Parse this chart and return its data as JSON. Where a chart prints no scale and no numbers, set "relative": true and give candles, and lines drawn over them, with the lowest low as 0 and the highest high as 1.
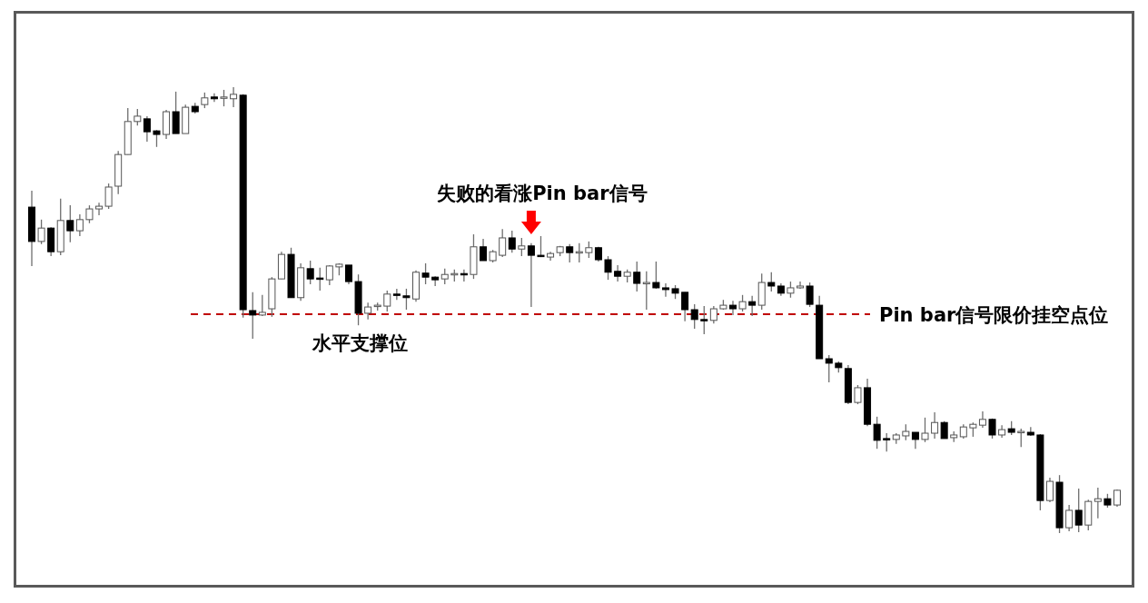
{
  "chart_data": {
    "type": "candlestick",
    "relative": true,
    "categories": [
      null,
      null,
      null,
      null,
      null,
      null,
      null,
      null,
      null,
      null,
      null,
      null,
      null,
      null,
      null,
      null,
      null,
      null,
      null,
      null,
      null,
      null,
      null,
      null,
      null,
      null,
      null,
      null,
      null,
      null,
      null,
      null,
      null,
      null,
      null,
      null,
      null,
      null,
      null,
      null,
      null,
      null,
      null,
      null,
      null,
      null,
      null,
      null,
      null,
      null,
      null,
      null,
      null,
      null,
      null,
      null,
      null,
      null,
      null,
      null,
      null,
      null,
      null,
      null,
      null,
      null,
      null,
      null,
      null,
      null,
      null,
      null,
      null,
      null,
      null,
      null,
      null,
      null,
      null,
      null,
      null,
      null,
      null,
      null,
      null,
      null,
      null,
      null,
      null,
      null,
      null,
      null,
      null,
      null,
      null,
      null,
      null,
      null,
      null,
      null,
      null,
      null,
      null,
      null,
      null,
      null,
      null,
      null,
      null,
      null,
      null,
      null,
      null,
      null
    ],
    "ohlc": [
      [
        0.731,
        0.768,
        0.599,
        0.654
      ],
      [
        0.654,
        0.703,
        0.648,
        0.684
      ],
      [
        0.684,
        0.686,
        0.621,
        0.631
      ],
      [
        0.631,
        0.75,
        0.623,
        0.701
      ],
      [
        0.701,
        0.735,
        0.652,
        0.678
      ],
      [
        0.678,
        0.715,
        0.666,
        0.703
      ],
      [
        0.703,
        0.735,
        0.695,
        0.727
      ],
      [
        0.727,
        0.741,
        0.713,
        0.733
      ],
      [
        0.733,
        0.784,
        0.727,
        0.776
      ],
      [
        0.778,
        0.857,
        0.76,
        0.849
      ],
      [
        0.849,
        0.953,
        0.849,
        0.923
      ],
      [
        0.923,
        0.951,
        0.914,
        0.935
      ],
      [
        0.929,
        0.935,
        0.878,
        0.9
      ],
      [
        0.902,
        0.904,
        0.866,
        0.894
      ],
      [
        0.894,
        0.949,
        0.884,
        0.945
      ],
      [
        0.945,
        0.99,
        0.896,
        0.896
      ],
      [
        0.896,
        0.961,
        0.896,
        0.955
      ],
      [
        0.957,
        0.965,
        0.941,
        0.945
      ],
      [
        0.961,
        0.988,
        0.953,
        0.976
      ],
      [
        0.978,
        0.986,
        0.967,
        0.974
      ],
      [
        0.976,
        0.994,
        0.957,
        0.978
      ],
      [
        0.974,
        1,
        0.955,
        0.984
      ],
      [
        0.982,
        0.984,
        0.483,
        0.501
      ],
      [
        0.499,
        0.54,
        0.436,
        0.489
      ],
      [
        0.489,
        0.534,
        0.487,
        0.495
      ],
      [
        0.503,
        0.574,
        0.485,
        0.57
      ],
      [
        0.57,
        0.631,
        0.57,
        0.625
      ],
      [
        0.625,
        0.64,
        0.528,
        0.528
      ],
      [
        0.528,
        0.605,
        0.521,
        0.595
      ],
      [
        0.593,
        0.611,
        0.558,
        0.57
      ],
      [
        0.572,
        0.595,
        0.544,
        0.57
      ],
      [
        0.568,
        0.601,
        0.556,
        0.599
      ],
      [
        0.597,
        0.605,
        0.578,
        0.603
      ],
      [
        0.601,
        0.601,
        0.558,
        0.564
      ],
      [
        0.564,
        0.58,
        0.466,
        0.493
      ],
      [
        0.493,
        0.517,
        0.479,
        0.507
      ],
      [
        0.509,
        0.517,
        0.499,
        0.511
      ],
      [
        0.509,
        0.544,
        0.497,
        0.536
      ],
      [
        0.536,
        0.548,
        0.523,
        0.534
      ],
      [
        0.532,
        0.548,
        0.501,
        0.528
      ],
      [
        0.525,
        0.589,
        0.519,
        0.585
      ],
      [
        0.583,
        0.605,
        0.558,
        0.574
      ],
      [
        0.574,
        0.576,
        0.554,
        0.568
      ],
      [
        0.57,
        0.593,
        0.558,
        0.58
      ],
      [
        0.58,
        0.591,
        0.564,
        0.582
      ],
      [
        0.582,
        0.591,
        0.564,
        0.58
      ],
      [
        0.58,
        0.67,
        0.57,
        0.642
      ],
      [
        0.642,
        0.66,
        0.611,
        0.611
      ],
      [
        0.611,
        0.635,
        0.607,
        0.631
      ],
      [
        0.623,
        0.682,
        0.619,
        0.662
      ],
      [
        0.662,
        0.678,
        0.629,
        0.637
      ],
      [
        0.637,
        0.662,
        0.621,
        0.644
      ],
      [
        0.644,
        0.65,
        0.507,
        0.623
      ],
      [
        0.623,
        0.666,
        0.619,
        0.621
      ],
      [
        0.619,
        0.631,
        0.611,
        0.627
      ],
      [
        0.629,
        0.644,
        0.621,
        0.642
      ],
      [
        0.642,
        0.648,
        0.607,
        0.629
      ],
      [
        0.629,
        0.65,
        0.607,
        0.631
      ],
      [
        0.629,
        0.654,
        0.617,
        0.64
      ],
      [
        0.64,
        0.642,
        0.609,
        0.613
      ],
      [
        0.613,
        0.621,
        0.568,
        0.585
      ],
      [
        0.587,
        0.601,
        0.564,
        0.576
      ],
      [
        0.576,
        0.591,
        0.562,
        0.585
      ],
      [
        0.585,
        0.609,
        0.542,
        0.56
      ],
      [
        0.56,
        0.587,
        0.501,
        0.562
      ],
      [
        0.562,
        0.609,
        0.548,
        0.55
      ],
      [
        0.55,
        0.56,
        0.53,
        0.546
      ],
      [
        0.548,
        0.556,
        0.525,
        0.538
      ],
      [
        0.54,
        0.54,
        0.475,
        0.501
      ],
      [
        0.501,
        0.513,
        0.458,
        0.479
      ],
      [
        0.479,
        0.509,
        0.446,
        0.477
      ],
      [
        0.477,
        0.509,
        0.47,
        0.503
      ],
      [
        0.503,
        0.523,
        0.501,
        0.511
      ],
      [
        0.511,
        0.521,
        0.489,
        0.503
      ],
      [
        0.503,
        0.534,
        0.497,
        0.519
      ],
      [
        0.519,
        0.532,
        0.487,
        0.511
      ],
      [
        0.511,
        0.582,
        0.501,
        0.562
      ],
      [
        0.562,
        0.585,
        0.542,
        0.554
      ],
      [
        0.554,
        0.56,
        0.532,
        0.538
      ],
      [
        0.538,
        0.564,
        0.528,
        0.55
      ],
      [
        0.55,
        0.564,
        0.548,
        0.554
      ],
      [
        0.554,
        0.562,
        0.507,
        0.513
      ],
      [
        0.511,
        0.532,
        0.391,
        0.391
      ],
      [
        0.391,
        0.399,
        0.338,
        0.381
      ],
      [
        0.381,
        0.385,
        0.36,
        0.371
      ],
      [
        0.369,
        0.377,
        0.289,
        0.293
      ],
      [
        0.293,
        0.332,
        0.289,
        0.326
      ],
      [
        0.326,
        0.346,
        0.24,
        0.244
      ],
      [
        0.244,
        0.261,
        0.189,
        0.208
      ],
      [
        0.212,
        0.224,
        0.183,
        0.21
      ],
      [
        0.21,
        0.224,
        0.2,
        0.22
      ],
      [
        0.218,
        0.244,
        0.208,
        0.228
      ],
      [
        0.226,
        0.226,
        0.189,
        0.21
      ],
      [
        0.21,
        0.259,
        0.204,
        0.224
      ],
      [
        0.224,
        0.271,
        0.212,
        0.248
      ],
      [
        0.248,
        0.251,
        0.212,
        0.212
      ],
      [
        0.214,
        0.228,
        0.204,
        0.22
      ],
      [
        0.216,
        0.244,
        0.212,
        0.238
      ],
      [
        0.236,
        0.248,
        0.216,
        0.244
      ],
      [
        0.242,
        0.273,
        0.236,
        0.255
      ],
      [
        0.255,
        0.257,
        0.212,
        0.22
      ],
      [
        0.22,
        0.242,
        0.214,
        0.232
      ],
      [
        0.234,
        0.251,
        0.22,
        0.226
      ],
      [
        0.226,
        0.234,
        0.193,
        0.228
      ],
      [
        0.226,
        0.238,
        0.218,
        0.22
      ],
      [
        0.22,
        0.222,
        0.051,
        0.073
      ],
      [
        0.073,
        0.124,
        0.069,
        0.116
      ],
      [
        0.114,
        0.13,
        0,
        0.012
      ],
      [
        0.012,
        0.063,
        0.004,
        0.051
      ],
      [
        0.051,
        0.1,
        0.002,
        0.018
      ],
      [
        0.018,
        0.075,
        0.006,
        0.071
      ],
      [
        0.071,
        0.102,
        0.033,
        0.077
      ],
      [
        0.077,
        0.088,
        0.057,
        0.063
      ],
      [
        0.063,
        0.098,
        0.059,
        0.096
      ]
    ],
    "ref_lines": [
      {
        "axis": "y",
        "value": 0.491,
        "label": "Pin bar信号限价挂空点位",
        "color": "#c00000",
        "line_style": "dashed"
      }
    ],
    "annotations": [
      {
        "text": "失败的看涨Pin bar信号",
        "y": 0.65
      },
      {
        "text": "水平支撑位",
        "y": 0.491
      }
    ]
  }
}
